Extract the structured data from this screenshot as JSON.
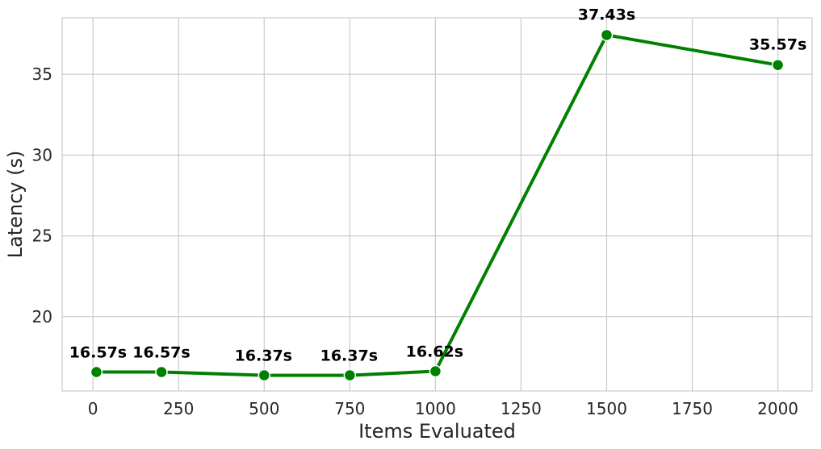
{
  "chart_data": {
    "type": "line",
    "title": "",
    "xlabel": "Items Evaluated",
    "ylabel": "Latency (s)",
    "xlim": [
      -90,
      2100
    ],
    "ylim": [
      15.4,
      38.5
    ],
    "xticks": [
      0,
      250,
      500,
      750,
      1000,
      1250,
      1500,
      1750,
      2000
    ],
    "yticks": [
      20,
      25,
      30,
      35
    ],
    "grid": true,
    "legend": "none",
    "series": [
      {
        "color": "#008000",
        "x": [
          10,
          200,
          500,
          750,
          1000,
          1500,
          2000
        ],
        "y": [
          16.57,
          16.57,
          16.37,
          16.37,
          16.62,
          37.43,
          35.57
        ],
        "labels": [
          "16.57s",
          "16.57s",
          "16.37s",
          "16.37s",
          "16.62s",
          "37.43s",
          "35.57s"
        ]
      }
    ]
  }
}
